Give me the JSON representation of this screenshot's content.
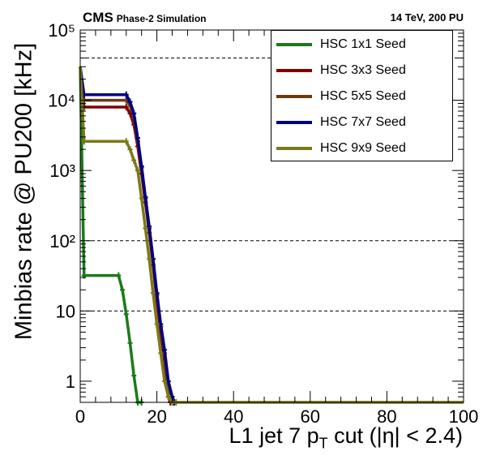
{
  "header": {
    "experiment": "CMS",
    "subtitle": "Phase-2 Simulation",
    "energy": "14 TeV, 200 PU"
  },
  "chart_data": {
    "type": "line",
    "xlabel_main": "L1 jet 7 p",
    "xlabel_sub": "T",
    "xlabel_tail": " cut (|η| < 2.4)",
    "ylabel": "Minbias rate @ PU200 [kHz]",
    "xlim": [
      0,
      100
    ],
    "ylim": [
      0.5,
      100000
    ],
    "yscale": "log",
    "x_ticks": [
      "0",
      "20",
      "40",
      "60",
      "80",
      "100"
    ],
    "y_ticks": [
      {
        "value": 1,
        "label": "1"
      },
      {
        "value": 10,
        "label": "10"
      },
      {
        "value": 100,
        "label": "10²"
      },
      {
        "value": 1000,
        "label": "10³"
      },
      {
        "value": 10000,
        "label": "10⁴"
      },
      {
        "value": 100000,
        "label": "10⁵"
      }
    ],
    "dashed_lines": [
      10,
      100,
      40000
    ],
    "legend_position": "top-right",
    "series": [
      {
        "name": "HSC 1x1 Seed",
        "color": "#1a7a1a",
        "x": [
          0,
          1,
          10,
          11,
          12,
          13,
          14,
          15,
          16
        ],
        "y": [
          30000,
          32,
          32,
          20,
          9,
          3.5,
          1.2,
          0.5,
          0.5
        ]
      },
      {
        "name": "HSC 3x3 Seed",
        "color": "#800000",
        "x": [
          0,
          1,
          12,
          13,
          14,
          15,
          16,
          17,
          18,
          19,
          20,
          21,
          22,
          23,
          23.5
        ],
        "y": [
          30000,
          8000,
          8000,
          6500,
          4500,
          2200,
          900,
          350,
          130,
          45,
          14,
          5,
          2,
          0.6,
          0.5
        ]
      },
      {
        "name": "HSC 5x5 Seed",
        "color": "#6b3a0f",
        "x": [
          0,
          1,
          12,
          13,
          14,
          15,
          16,
          17,
          18,
          19,
          20,
          21,
          22,
          23,
          24,
          24.5
        ],
        "y": [
          30000,
          10000,
          10000,
          8500,
          5500,
          2600,
          1100,
          400,
          150,
          55,
          17,
          6,
          2.5,
          0.8,
          0.6,
          0.5
        ]
      },
      {
        "name": "HSC 7x7 Seed",
        "color": "#000080",
        "x": [
          0,
          1,
          12,
          13,
          14,
          15,
          16,
          17,
          18,
          19,
          20,
          21,
          22,
          23,
          24,
          24.5
        ],
        "y": [
          30000,
          12000,
          12000,
          9500,
          6500,
          2900,
          1150,
          420,
          160,
          55,
          18,
          6.5,
          2.8,
          1,
          0.6,
          0.5
        ]
      },
      {
        "name": "HSC 9x9 Seed",
        "color": "#7a7a1a",
        "x": [
          0,
          1,
          12,
          13,
          14,
          15,
          16,
          17,
          18,
          19,
          20,
          21,
          22,
          23,
          24,
          25,
          100
        ],
        "y": [
          30000,
          2600,
          2600,
          2000,
          1400,
          1000,
          400,
          150,
          55,
          18,
          6.5,
          2.5,
          1,
          0.6,
          0.5,
          0.5,
          0.5
        ]
      }
    ]
  }
}
